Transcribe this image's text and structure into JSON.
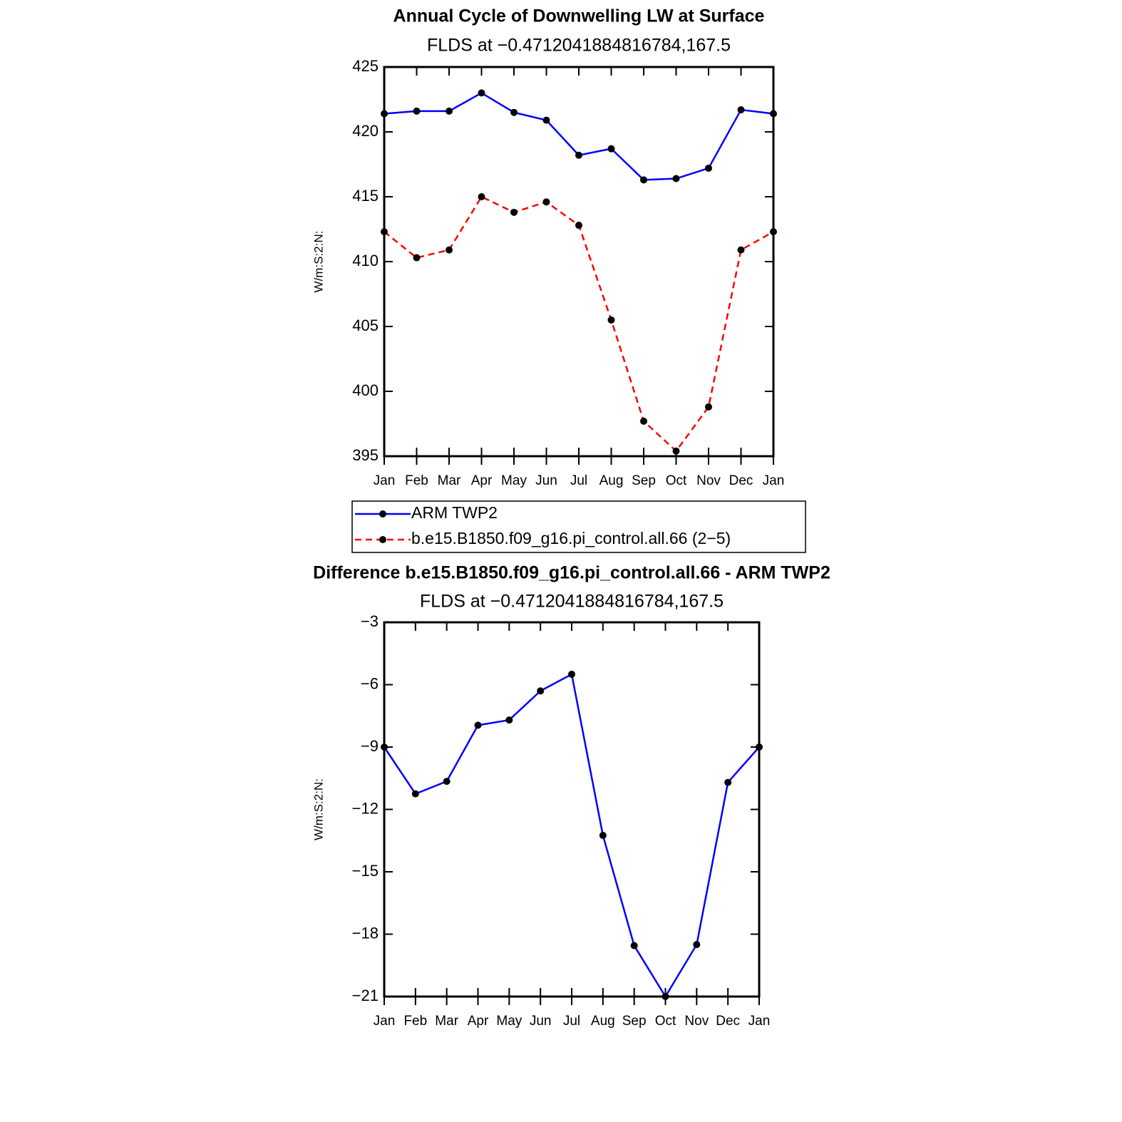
{
  "chart_data": [
    {
      "type": "line",
      "title": "Annual Cycle of Downwelling LW at Surface",
      "subtitle": "FLDS at −0.4712041884816784,167.5",
      "ylabel": "W/m:S:2:N:",
      "categories": [
        "Jan",
        "Feb",
        "Mar",
        "Apr",
        "May",
        "Jun",
        "Jul",
        "Aug",
        "Sep",
        "Oct",
        "Nov",
        "Dec",
        "Jan"
      ],
      "ylim": [
        395,
        425
      ],
      "yticks": [
        395,
        400,
        405,
        410,
        415,
        420,
        425
      ],
      "legend": "below",
      "series": [
        {
          "name": "ARM TWP2",
          "color": "#0000ff",
          "line_style": "solid",
          "values": [
            421.4,
            421.6,
            421.6,
            423.0,
            421.5,
            420.9,
            418.2,
            418.7,
            416.3,
            416.4,
            417.2,
            421.7,
            421.4
          ]
        },
        {
          "name": "b.e15.B1850.f09_g16.pi_control.all.66 (2−5)",
          "color": "#ff0000",
          "line_style": "dashed",
          "values": [
            412.3,
            410.3,
            410.9,
            415.0,
            413.8,
            414.6,
            412.8,
            405.5,
            397.7,
            395.4,
            398.8,
            410.9,
            412.3
          ]
        }
      ]
    },
    {
      "type": "line",
      "title": "Difference b.e15.B1850.f09_g16.pi_control.all.66 - ARM TWP2",
      "subtitle": "FLDS at −0.4712041884816784,167.5",
      "ylabel": "W/m:S:2:N:",
      "categories": [
        "Jan",
        "Feb",
        "Mar",
        "Apr",
        "May",
        "Jun",
        "Jul",
        "Aug",
        "Sep",
        "Oct",
        "Nov",
        "Dec",
        "Jan"
      ],
      "ylim": [
        -21,
        -3
      ],
      "yticks": [
        {
          "value": -21,
          "label": "−21"
        },
        {
          "value": -18,
          "label": "−18"
        },
        {
          "value": -15,
          "label": "−15"
        },
        {
          "value": -12,
          "label": "−12"
        },
        {
          "value": -9,
          "label": "−9"
        },
        {
          "value": -6,
          "label": "−6"
        },
        {
          "value": -3,
          "label": "−3"
        }
      ],
      "color": "#0000ff",
      "line_style": "solid",
      "values": [
        -9.0,
        -11.25,
        -10.65,
        -7.95,
        -7.7,
        -6.3,
        -5.5,
        -13.25,
        -18.55,
        -21.0,
        -18.5,
        -10.7,
        -9.0
      ]
    }
  ]
}
